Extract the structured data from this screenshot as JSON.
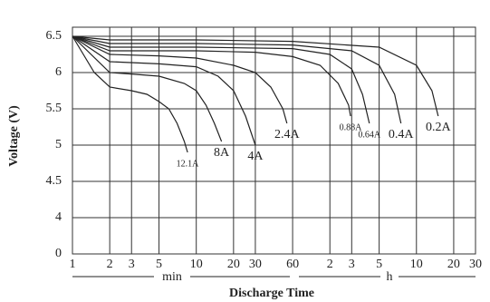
{
  "chart_data": {
    "type": "line",
    "y_label": "Voltage (V)",
    "x_label": "Discharge Time",
    "x_units": [
      "min",
      "h"
    ],
    "xscale": "log",
    "xlim": [
      1,
      1800
    ],
    "xticks": [
      1,
      2,
      3,
      5,
      10,
      20,
      30,
      60,
      {
        "value": 120,
        "label": "2"
      },
      {
        "value": 180,
        "label": "3"
      },
      {
        "value": 300,
        "label": "5"
      },
      {
        "value": 600,
        "label": "10"
      },
      {
        "value": 1200,
        "label": "20"
      },
      {
        "value": 1800,
        "label": "30"
      }
    ],
    "ylim": [
      0,
      6.5
    ],
    "yticks": [
      0,
      4,
      4.5,
      5,
      5.5,
      6,
      6.5
    ],
    "grid": true,
    "series": [
      {
        "name": "12.1A",
        "color": "#222222",
        "x": [
          1,
          1.5,
          2,
          3,
          4,
          5,
          6,
          7,
          8,
          8.5
        ],
        "values": [
          6.5,
          6.0,
          5.8,
          5.75,
          5.7,
          5.6,
          5.5,
          5.3,
          5.05,
          4.9
        ]
      },
      {
        "name": "8A",
        "color": "#222222",
        "x": [
          1,
          2,
          3,
          5,
          8,
          10,
          12,
          14,
          16
        ],
        "values": [
          6.5,
          6.0,
          5.98,
          5.95,
          5.85,
          5.75,
          5.55,
          5.3,
          5.05
        ]
      },
      {
        "name": "4A",
        "color": "#222222",
        "x": [
          1,
          2,
          5,
          10,
          15,
          20,
          25,
          30
        ],
        "values": [
          6.5,
          6.15,
          6.12,
          6.08,
          5.95,
          5.75,
          5.4,
          5.0
        ]
      },
      {
        "name": "2.4A",
        "color": "#222222",
        "x": [
          1,
          2,
          5,
          10,
          20,
          30,
          40,
          50,
          54
        ],
        "values": [
          6.5,
          6.25,
          6.23,
          6.2,
          6.1,
          6.0,
          5.8,
          5.5,
          5.3
        ]
      },
      {
        "name": "0.88A",
        "color": "#222222",
        "x": [
          1,
          2,
          10,
          30,
          60,
          100,
          140,
          170,
          176
        ],
        "values": [
          6.5,
          6.3,
          6.3,
          6.28,
          6.22,
          6.1,
          5.85,
          5.55,
          5.4
        ]
      },
      {
        "name": "0.64A",
        "color": "#222222",
        "x": [
          1,
          2,
          10,
          60,
          120,
          180,
          220,
          250
        ],
        "values": [
          6.5,
          6.35,
          6.35,
          6.33,
          6.25,
          6.05,
          5.7,
          5.3
        ]
      },
      {
        "name": "0.4A",
        "color": "#222222",
        "x": [
          1,
          2,
          10,
          60,
          180,
          300,
          400,
          450
        ],
        "values": [
          6.5,
          6.4,
          6.4,
          6.38,
          6.3,
          6.1,
          5.7,
          5.3
        ]
      },
      {
        "name": "0.2A",
        "color": "#222222",
        "x": [
          1,
          2,
          10,
          60,
          300,
          600,
          800,
          900
        ],
        "values": [
          6.5,
          6.45,
          6.45,
          6.43,
          6.35,
          6.1,
          5.75,
          5.4
        ]
      }
    ]
  }
}
